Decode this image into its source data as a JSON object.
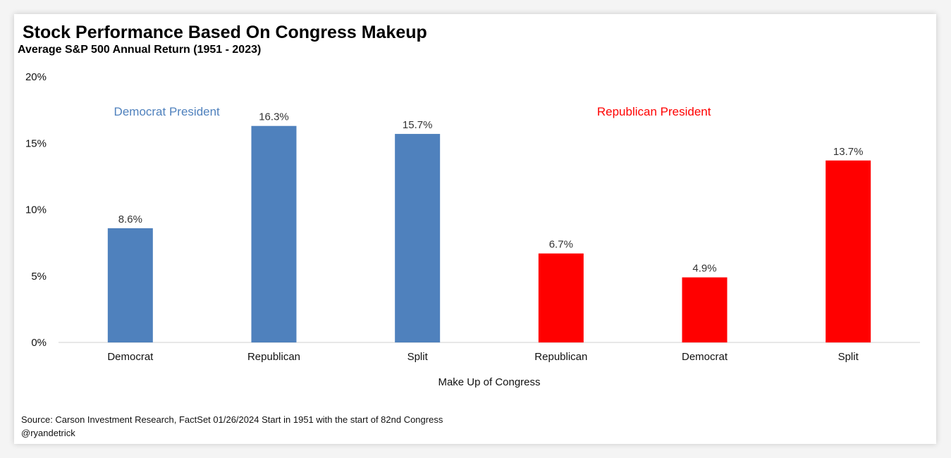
{
  "title": "Stock Performance Based On Congress Makeup",
  "subtitle": "Average S&P 500 Annual Return (1951 - 2023)",
  "source": "Source: Carson Investment Research, FactSet   01/26/2024   Start in 1951 with the start of 82nd Congress",
  "handle": "@ryandetrick",
  "colors": {
    "democrat": "#4f81bd",
    "republican": "#ff0000"
  },
  "chart_data": {
    "type": "bar",
    "xlabel": "Make Up of Congress",
    "ylabel": "",
    "ylim": [
      0,
      20
    ],
    "yticks": [
      {
        "value": 0,
        "label": "0%"
      },
      {
        "value": 5,
        "label": "5%"
      },
      {
        "value": 10,
        "label": "10%"
      },
      {
        "value": 15,
        "label": "15%"
      },
      {
        "value": 20,
        "label": "20%"
      }
    ],
    "grid": false,
    "groups": [
      {
        "label": "Democrat  President",
        "color": "#4f81bd",
        "start": 0,
        "end": 2
      },
      {
        "label": "Republican  President",
        "color": "#ff0000",
        "start": 3,
        "end": 5
      }
    ],
    "bars": [
      {
        "category": "Democrat",
        "value": 8.6,
        "label": "8.6%",
        "color": "#4f81bd"
      },
      {
        "category": "Republican",
        "value": 16.3,
        "label": "16.3%",
        "color": "#4f81bd"
      },
      {
        "category": "Split",
        "value": 15.7,
        "label": "15.7%",
        "color": "#4f81bd"
      },
      {
        "category": "Republican",
        "value": 6.7,
        "label": "6.7%",
        "color": "#ff0000"
      },
      {
        "category": "Democrat",
        "value": 4.9,
        "label": "4.9%",
        "color": "#ff0000"
      },
      {
        "category": "Split",
        "value": 13.7,
        "label": "13.7%",
        "color": "#ff0000"
      }
    ]
  }
}
